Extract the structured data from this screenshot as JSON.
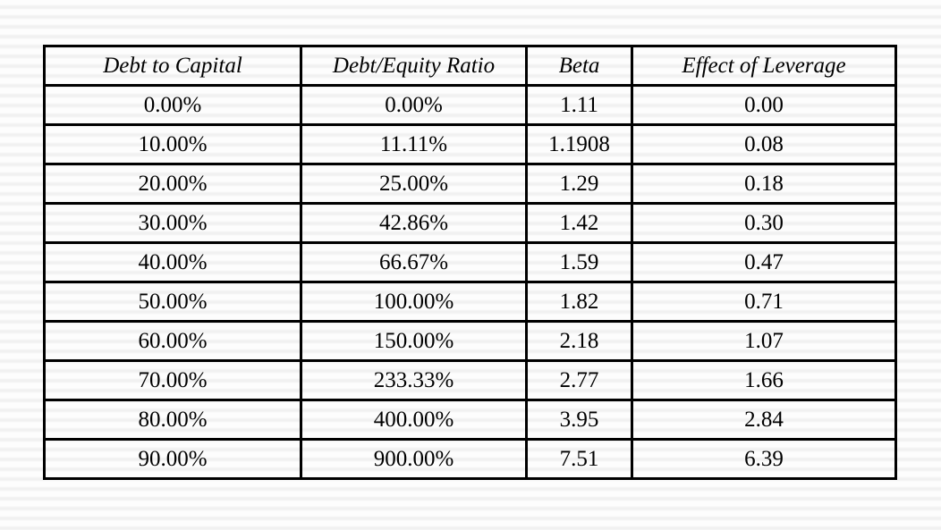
{
  "page": {
    "kind": "presentation-slide-table",
    "colors": {
      "text": "#000000",
      "table_border": "#000000",
      "background_stripe_light": "#fdfdfd",
      "background_stripe_dark": "#f1f1f1"
    }
  },
  "chart_data": {
    "type": "table",
    "title": "",
    "columns": [
      "Debt to Capital",
      "Debt/Equity Ratio",
      "Beta",
      "Effect of Leverage"
    ],
    "rows": [
      [
        "0.00%",
        "0.00%",
        "1.11",
        "0.00"
      ],
      [
        "10.00%",
        "11.11%",
        "1.1908",
        "0.08"
      ],
      [
        "20.00%",
        "25.00%",
        "1.29",
        "0.18"
      ],
      [
        "30.00%",
        "42.86%",
        "1.42",
        "0.30"
      ],
      [
        "40.00%",
        "66.67%",
        "1.59",
        "0.47"
      ],
      [
        "50.00%",
        "100.00%",
        "1.82",
        "0.71"
      ],
      [
        "60.00%",
        "150.00%",
        "2.18",
        "1.07"
      ],
      [
        "70.00%",
        "233.33%",
        "2.77",
        "1.66"
      ],
      [
        "80.00%",
        "400.00%",
        "3.95",
        "2.84"
      ],
      [
        "90.00%",
        "900.00%",
        "7.51",
        "6.39"
      ]
    ]
  }
}
